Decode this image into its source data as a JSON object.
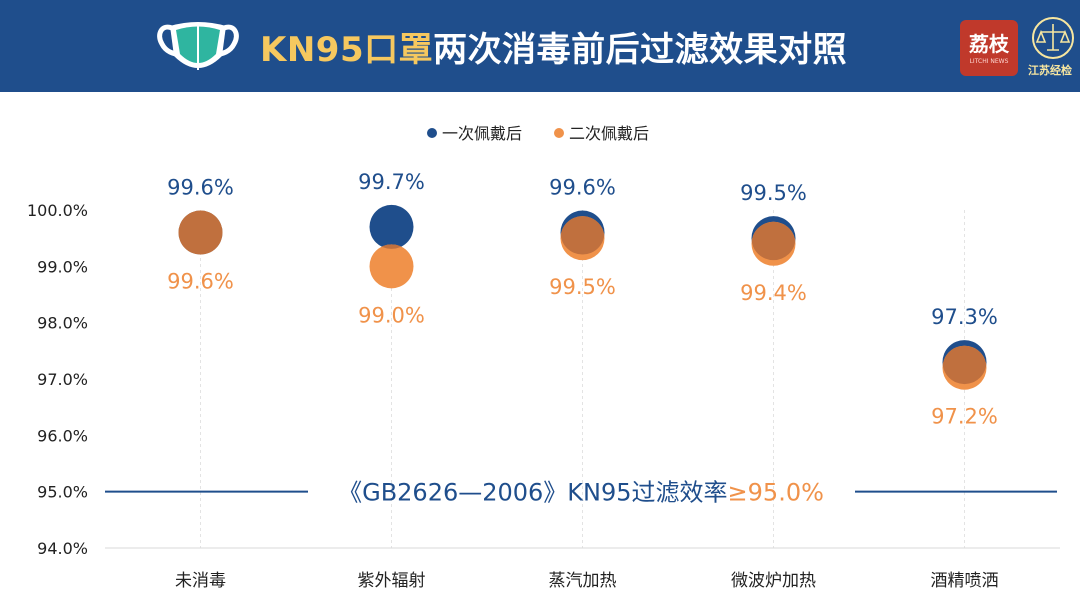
{
  "header": {
    "title_highlight": "KN95口罩",
    "title_rest": "两次消毒前后过滤效果对照",
    "logo_text": "荔枝",
    "logo_sub": "LITCHI NEWS",
    "seal_text": "江苏经检"
  },
  "chart_data": {
    "type": "scatter",
    "title": "KN95口罩两次消毒前后过滤效果对照",
    "categories": [
      "未消毒",
      "紫外辐射",
      "蒸汽加热",
      "微波炉加热",
      "酒精喷洒"
    ],
    "series": [
      {
        "name": "一次佩戴后",
        "color": "#1f4e8c",
        "values": [
          99.6,
          99.7,
          99.6,
          99.5,
          97.3
        ],
        "labels": [
          "99.6%",
          "99.7%",
          "99.6%",
          "99.5%",
          "97.3%"
        ]
      },
      {
        "name": "二次佩戴后",
        "color": "#f0924a",
        "values": [
          99.6,
          99.0,
          99.5,
          99.4,
          97.2
        ],
        "labels": [
          "99.6%",
          "99.0%",
          "99.5%",
          "99.4%",
          "97.2%"
        ]
      }
    ],
    "overlap_color": "#c0703e",
    "y_ticks": [
      "100.0%",
      "99.0%",
      "98.0%",
      "97.0%",
      "96.0%",
      "95.0%",
      "94.0%"
    ],
    "ylim": [
      94.0,
      100.0
    ],
    "legend_position": "top-center",
    "reference_line": {
      "value": 95.0,
      "label_blue": "《GB2626—2006》KN95过滤效率",
      "label_orange": "≥95.0%"
    }
  }
}
